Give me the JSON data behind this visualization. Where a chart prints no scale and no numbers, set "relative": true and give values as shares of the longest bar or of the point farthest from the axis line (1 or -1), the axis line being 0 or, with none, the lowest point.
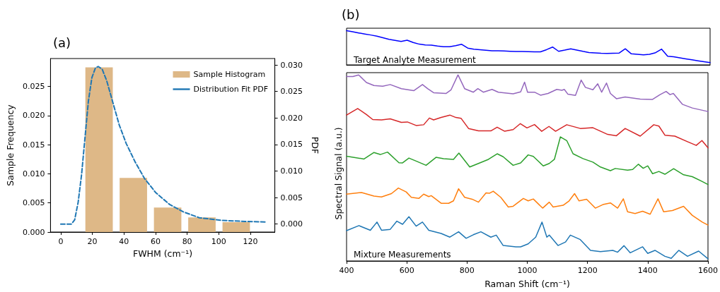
{
  "chart_data": [
    {
      "type": "histogram",
      "title": "(a)",
      "xlabel": "FWHM (cm⁻¹)",
      "ylabel": "Sample Frequency",
      "y2label": "PDF",
      "bins": [
        13.4,
        35.1,
        56.8,
        78.5,
        100.2,
        121.9
      ],
      "series": [
        {
          "name": "Sample Histogram",
          "type": "histogram",
          "color": "#deb887",
          "values": [
            0.0283,
            0.0093,
            0.0042,
            0.0025,
            0.0017
          ]
        },
        {
          "name": "Distribution Fit PDF",
          "type": "line",
          "axis": "y2",
          "color": "#1f77b4",
          "x": [
            0,
            6.7,
            8.8,
            11,
            13.2,
            15.4,
            17.5,
            19.7,
            21.9,
            23.7,
            26.2,
            29.1,
            32.7,
            37,
            41.4,
            47.1,
            53,
            60.2,
            68.9,
            77.6,
            87.7,
            102,
            116.7,
            129.6
          ],
          "values": [
            0,
            0,
            0.0008,
            0.0041,
            0.0094,
            0.0165,
            0.0232,
            0.0276,
            0.0294,
            0.0297,
            0.0292,
            0.027,
            0.0232,
            0.0187,
            0.0152,
            0.0117,
            0.0086,
            0.0059,
            0.0037,
            0.0023,
            0.0012,
            0.0007,
            0.0005,
            0.0004
          ]
        }
      ],
      "line_style": "dashed",
      "marker": "none",
      "legend": "top right",
      "xlim": [
        -6.5,
        135.5
      ],
      "xticks": [
        0,
        20,
        40,
        60,
        80,
        100,
        120
      ],
      "ylim": [
        0,
        0.0298
      ],
      "yticks": [
        {
          "value": 0,
          "label": "0.000"
        },
        0.005,
        {
          "value": 0.01,
          "label": "0.010"
        },
        0.015,
        {
          "value": 0.02,
          "label": "0.020"
        },
        0.025
      ],
      "y2lim": [
        -0.0015,
        0.0312
      ],
      "y2ticks": [
        {
          "value": 0,
          "label": "0.000"
        },
        0.005,
        {
          "value": 0.01,
          "label": "0.010"
        },
        0.015,
        {
          "value": 0.02,
          "label": "0.020"
        },
        0.025,
        {
          "value": 0.03,
          "label": "0.030"
        }
      ]
    },
    {
      "type": "line",
      "title": "(b)",
      "relative": true,
      "marker": "none",
      "annotations": [
        "Target Analyte Measurement"
      ],
      "categories": [
        null,
        null,
        null,
        null,
        null,
        null,
        null,
        null,
        null,
        null,
        null,
        null,
        null,
        null,
        null,
        null,
        null,
        null,
        null,
        null,
        null,
        null,
        null,
        null,
        null,
        null,
        null,
        null,
        null,
        null,
        null,
        null,
        null,
        null,
        null,
        null,
        null,
        null,
        null,
        null,
        null,
        null,
        null,
        null,
        null,
        null,
        null,
        null,
        null,
        null,
        null,
        null,
        null,
        null,
        null,
        null,
        null,
        null,
        null,
        null,
        null
      ],
      "series": [
        {
          "color": "#0000ff",
          "values": [
            1.0,
            0.966,
            0.933,
            0.902,
            0.872,
            0.839,
            0.792,
            0.746,
            0.715,
            0.684,
            0.72,
            0.654,
            0.605,
            0.582,
            0.575,
            0.55,
            0.531,
            0.531,
            0.56,
            0.6,
            0.49,
            0.458,
            0.443,
            0.428,
            0.414,
            0.409,
            0.404,
            0.398,
            0.393,
            0.39,
            0.387,
            0.383,
            0.38,
            0.444,
            0.52,
            0.396,
            0.43,
            0.47,
            0.434,
            0.394,
            0.36,
            0.348,
            0.337,
            0.334,
            0.339,
            0.345,
            0.47,
            0.322,
            0.307,
            0.292,
            0.307,
            0.356,
            0.46,
            0.25,
            0.236,
            0.206,
            0.176,
            0.147,
            0.119,
            0.094,
            0.069
          ]
        }
      ]
    },
    {
      "type": "line",
      "relative": true,
      "xlabel": "Raman Shift (cm⁻¹)",
      "ylabel": "Spectral Signal (a.u.)",
      "marker": "none",
      "annotations": [
        "Mixture Measurements"
      ],
      "xlim": [
        400,
        1600
      ],
      "xticks": [
        400,
        600,
        800,
        1000,
        1200,
        1400,
        1600
      ],
      "series": [
        {
          "color": "#9467bd",
          "x": [
            400,
            421,
            440,
            466,
            491,
            520,
            545,
            582,
            623,
            652,
            669,
            689,
            730,
            747,
            770,
            792,
            821,
            836,
            854,
            883,
            904,
            953,
            978,
            991,
            1001,
            1024,
            1044,
            1069,
            1098,
            1115,
            1123,
            1135,
            1160,
            1179,
            1193,
            1218,
            1234,
            1247,
            1263,
            1276,
            1296,
            1325,
            1375,
            1416,
            1441,
            1461,
            1474,
            1485,
            1515,
            1548,
            1600
          ],
          "values": [
            0.991,
            0.991,
            1.0,
            0.959,
            0.943,
            0.939,
            0.948,
            0.926,
            0.915,
            0.948,
            0.926,
            0.904,
            0.9,
            0.92,
            1.0,
            0.926,
            0.907,
            0.926,
            0.907,
            0.922,
            0.907,
            0.898,
            0.909,
            0.961,
            0.907,
            0.907,
            0.891,
            0.9,
            0.922,
            0.917,
            0.922,
            0.896,
            0.89,
            0.972,
            0.933,
            0.92,
            0.952,
            0.907,
            0.956,
            0.9,
            0.872,
            0.881,
            0.87,
            0.868,
            0.894,
            0.911,
            0.894,
            0.9,
            0.842,
            0.822,
            0.803
          ]
        },
        {
          "color": "#d62728",
          "x": [
            400,
            437,
            466,
            487,
            516,
            545,
            582,
            602,
            631,
            656,
            675,
            689,
            714,
            743,
            763,
            780,
            805,
            838,
            879,
            900,
            925,
            953,
            977,
            999,
            1024,
            1048,
            1072,
            1094,
            1131,
            1176,
            1218,
            1267,
            1296,
            1325,
            1375,
            1420,
            1437,
            1457,
            1490,
            1532,
            1561,
            1580,
            1600
          ],
          "values": [
            0.784,
            0.819,
            0.787,
            0.76,
            0.758,
            0.764,
            0.745,
            0.747,
            0.728,
            0.732,
            0.768,
            0.758,
            0.771,
            0.784,
            0.771,
            0.767,
            0.712,
            0.699,
            0.699,
            0.719,
            0.697,
            0.706,
            0.738,
            0.715,
            0.733,
            0.697,
            0.723,
            0.697,
            0.732,
            0.712,
            0.716,
            0.68,
            0.673,
            0.712,
            0.671,
            0.732,
            0.725,
            0.676,
            0.671,
            0.641,
            0.621,
            0.647,
            0.608
          ]
        },
        {
          "color": "#2ca02c",
          "x": [
            400,
            458,
            491,
            512,
            536,
            574,
            586,
            607,
            631,
            664,
            697,
            722,
            755,
            773,
            809,
            838,
            871,
            900,
            920,
            953,
            978,
            1003,
            1020,
            1053,
            1073,
            1090,
            1110,
            1131,
            1152,
            1185,
            1218,
            1243,
            1276,
            1292,
            1333,
            1350,
            1369,
            1385,
            1400,
            1416,
            1437,
            1457,
            1486,
            1519,
            1548,
            1581,
            1600
          ],
          "values": [
            0.563,
            0.548,
            0.583,
            0.572,
            0.585,
            0.528,
            0.527,
            0.553,
            0.537,
            0.514,
            0.557,
            0.55,
            0.546,
            0.58,
            0.505,
            0.524,
            0.546,
            0.576,
            0.56,
            0.514,
            0.527,
            0.57,
            0.562,
            0.511,
            0.524,
            0.546,
            0.667,
            0.647,
            0.576,
            0.55,
            0.531,
            0.505,
            0.485,
            0.497,
            0.488,
            0.492,
            0.52,
            0.498,
            0.511,
            0.469,
            0.481,
            0.466,
            0.496,
            0.463,
            0.453,
            0.427,
            0.411
          ]
        },
        {
          "color": "#ff7f0e",
          "x": [
            400,
            450,
            491,
            516,
            549,
            572,
            598,
            615,
            640,
            656,
            673,
            681,
            714,
            739,
            755,
            772,
            792,
            817,
            838,
            863,
            875,
            887,
            912,
            937,
            953,
            987,
            1003,
            1020,
            1051,
            1073,
            1086,
            1119,
            1139,
            1157,
            1172,
            1197,
            1226,
            1251,
            1276,
            1300,
            1319,
            1333,
            1358,
            1383,
            1408,
            1434,
            1453,
            1482,
            1519,
            1548,
            1581,
            1600
          ],
          "values": [
            0.359,
            0.368,
            0.349,
            0.344,
            0.362,
            0.392,
            0.371,
            0.342,
            0.336,
            0.359,
            0.346,
            0.351,
            0.31,
            0.31,
            0.323,
            0.388,
            0.342,
            0.332,
            0.316,
            0.366,
            0.364,
            0.375,
            0.342,
            0.29,
            0.294,
            0.336,
            0.323,
            0.333,
            0.284,
            0.316,
            0.29,
            0.299,
            0.323,
            0.362,
            0.323,
            0.332,
            0.284,
            0.303,
            0.312,
            0.284,
            0.334,
            0.264,
            0.255,
            0.267,
            0.251,
            0.334,
            0.264,
            0.271,
            0.294,
            0.245,
            0.209,
            0.193
          ]
        },
        {
          "color": "#1f77b4",
          "x": [
            400,
            441,
            479,
            501,
            516,
            545,
            567,
            586,
            607,
            631,
            652,
            673,
            689,
            714,
            743,
            772,
            797,
            821,
            846,
            879,
            897,
            920,
            962,
            978,
            1003,
            1028,
            1049,
            1065,
            1073,
            1102,
            1127,
            1143,
            1176,
            1210,
            1243,
            1284,
            1300,
            1321,
            1342,
            1383,
            1400,
            1424,
            1457,
            1478,
            1503,
            1532,
            1569,
            1600
          ],
          "values": [
            0.163,
            0.19,
            0.165,
            0.209,
            0.165,
            0.17,
            0.214,
            0.197,
            0.238,
            0.187,
            0.209,
            0.165,
            0.158,
            0.148,
            0.128,
            0.157,
            0.122,
            0.141,
            0.157,
            0.128,
            0.139,
            0.083,
            0.076,
            0.076,
            0.092,
            0.128,
            0.209,
            0.128,
            0.139,
            0.083,
            0.102,
            0.139,
            0.115,
            0.057,
            0.05,
            0.057,
            0.047,
            0.082,
            0.044,
            0.076,
            0.041,
            0.057,
            0.025,
            0.014,
            0.057,
            0.025,
            0.053,
            0.012
          ]
        }
      ]
    }
  ]
}
